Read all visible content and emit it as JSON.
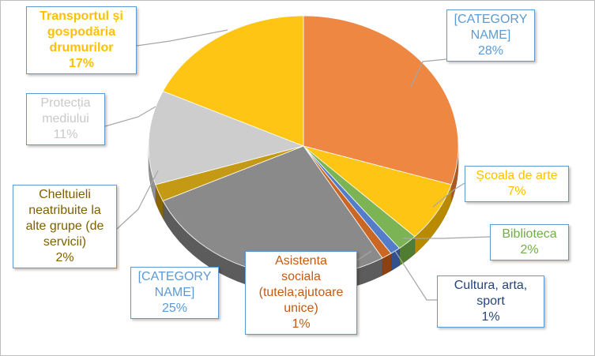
{
  "chart_data": {
    "type": "pie",
    "three_d": true,
    "legend": "none",
    "slices": [
      {
        "label": "[CATEGORY NAME]",
        "percent": 28,
        "color": "#ed7d31",
        "label_color": "#5b9bd5"
      },
      {
        "label": "Școala de arte",
        "percent": 7,
        "color": "#ffc000",
        "label_color": "#ffc000"
      },
      {
        "label": "Biblioteca",
        "percent": 2,
        "color": "#70ad47",
        "label_color": "#70ad47"
      },
      {
        "label": "Cultura, arta, sport",
        "percent": 1,
        "color": "#4472c4",
        "label_color": "#264478"
      },
      {
        "label": "Asistenta sociala (tutela;ajutoare unice)",
        "percent": 1,
        "color": "#c55a11",
        "label_color": "#c55a11"
      },
      {
        "label": "[CATEGORY NAME]",
        "percent": 25,
        "color": "#808080",
        "label_color": "#5b9bd5"
      },
      {
        "label": "Cheltuieli neatribuite la alte grupe (de servicii)",
        "percent": 2,
        "color": "#bf9000",
        "label_color": "#7f6000"
      },
      {
        "label": "Protecția mediului",
        "percent": 11,
        "color": "#c9c9c9",
        "label_color": "#c9c9c9"
      },
      {
        "label": "Transportul și gospodăria drumurilor",
        "percent": 17,
        "color": "#ffc000",
        "label_color": "#ffc000"
      }
    ]
  },
  "labels": [
    {
      "lines": [
        "[CATEGORY",
        "NAME]"
      ],
      "pct": "28%"
    },
    {
      "lines": [
        "Școala de arte"
      ],
      "pct": "7%"
    },
    {
      "lines": [
        "Biblioteca"
      ],
      "pct": "2%"
    },
    {
      "lines": [
        "Cultura, arta,",
        "sport"
      ],
      "pct": "1%"
    },
    {
      "lines": [
        "Asistenta",
        "sociala",
        "(tutela;ajutoare",
        "unice)"
      ],
      "pct": "1%"
    },
    {
      "lines": [
        "[CATEGORY",
        "NAME]"
      ],
      "pct": "25%"
    },
    {
      "lines": [
        "Cheltuieli",
        "neatribuite la",
        "alte grupe (de",
        "servicii)"
      ],
      "pct": "2%"
    },
    {
      "lines": [
        "Protecția",
        "mediului"
      ],
      "pct": "11%"
    },
    {
      "lines": [
        "Transportul și",
        "gospodăria",
        "drumurilor"
      ],
      "pct": "17%"
    }
  ]
}
